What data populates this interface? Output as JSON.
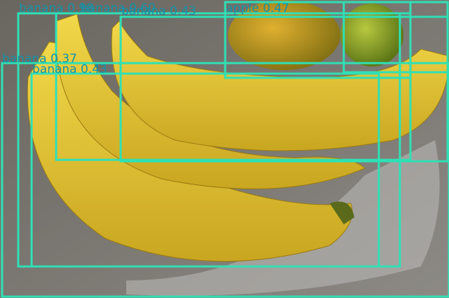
{
  "detections": [
    {
      "label": "banana 0.98"
    },
    {
      "label": "banana 0.60"
    },
    {
      "label": "banana 0.43"
    },
    {
      "label": "apple 0.47"
    },
    {
      "label": "banana 0.37"
    },
    {
      "label": "banana 0.43"
    }
  ]
}
